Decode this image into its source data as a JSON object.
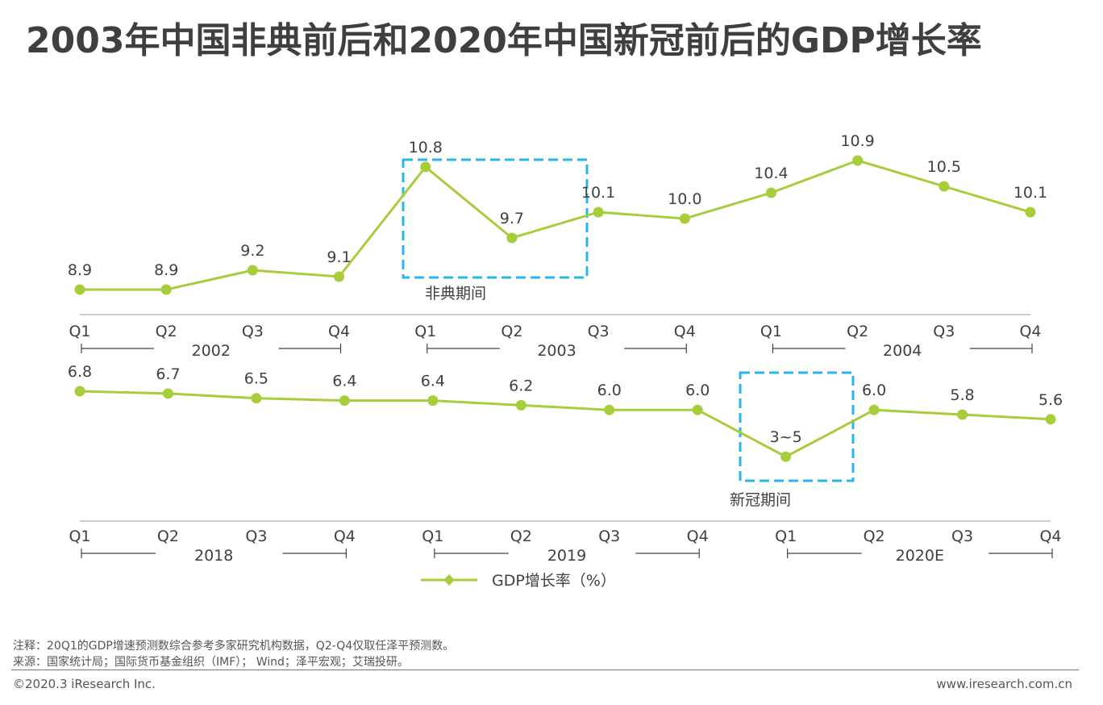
{
  "title": "2003年中国非典前后和2020年中国新冠前后的GDP增长率",
  "colors": {
    "line": "#a8cd3a",
    "highlight": "#29b6e8",
    "axis": "#8c8c8c",
    "text": "#404040"
  },
  "chart_data": [
    {
      "type": "line",
      "title": "",
      "categories": [
        "Q1",
        "Q2",
        "Q3",
        "Q4",
        "Q1",
        "Q2",
        "Q3",
        "Q4",
        "Q1",
        "Q2",
        "Q3",
        "Q4"
      ],
      "years": [
        "2002",
        "2003",
        "2004"
      ],
      "series": [
        {
          "values": [
            8.9,
            8.9,
            9.2,
            9.1,
            10.8,
            9.7,
            10.1,
            10.0,
            10.4,
            10.9,
            10.5,
            10.1
          ],
          "labels": [
            "8.9",
            "8.9",
            "9.2",
            "9.1",
            "10.8",
            "9.7",
            "10.1",
            "10.0",
            "10.4",
            "10.9",
            "10.5",
            "10.1"
          ]
        }
      ],
      "annotation": {
        "text": "非典期间",
        "from_index": 4,
        "to_index": 5
      }
    },
    {
      "type": "line",
      "title": "",
      "categories": [
        "Q1",
        "Q2",
        "Q3",
        "Q4",
        "Q1",
        "Q2",
        "Q3",
        "Q4",
        "Q1",
        "Q2",
        "Q3",
        "Q4"
      ],
      "years": [
        "2018",
        "2019",
        "2020E"
      ],
      "series": [
        {
          "values": [
            6.8,
            6.7,
            6.5,
            6.4,
            6.4,
            6.2,
            6.0,
            6.0,
            4.0,
            6.0,
            5.8,
            5.6
          ],
          "labels": [
            "6.8",
            "6.7",
            "6.5",
            "6.4",
            "6.4",
            "6.2",
            "6.0",
            "6.0",
            "3~5",
            "6.0",
            "5.8",
            "5.6"
          ]
        }
      ],
      "annotation": {
        "text": "新冠期间",
        "from_index": 8,
        "to_index": 8
      }
    }
  ],
  "legend": {
    "label": "GDP增长率（%）"
  },
  "footer": {
    "note": "注释：20Q1的GDP增速预测数综合参考多家研究机构数据，Q2-Q4仅取任泽平预测数。",
    "source": "来源：国家统计局；国际货币基金组织（IMF）； Wind；泽平宏观；艾瑞投研。",
    "copyright": "©2020.3 iResearch Inc.",
    "website": "www.iresearch.com.cn"
  }
}
